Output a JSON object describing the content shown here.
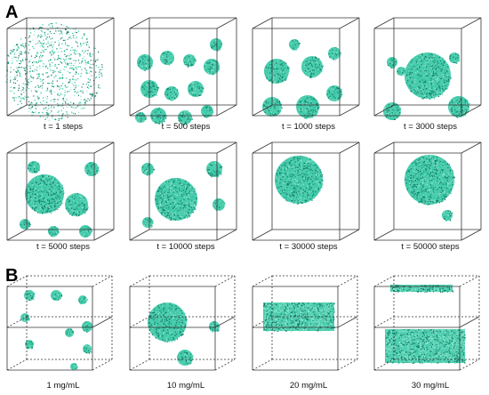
{
  "panels": {
    "a": {
      "letter": "A",
      "rows": [
        [
          {
            "caption": "t = 1 steps"
          },
          {
            "caption": "t = 500 steps"
          },
          {
            "caption": "t = 1000 steps"
          },
          {
            "caption": "t = 3000 steps"
          }
        ],
        [
          {
            "caption": "t = 5000 steps"
          },
          {
            "caption": "t = 10000 steps"
          },
          {
            "caption": "t = 30000 steps"
          },
          {
            "caption": "t = 50000 steps"
          }
        ]
      ]
    },
    "b": {
      "letter": "B",
      "items": [
        {
          "caption": "1 mg/mL"
        },
        {
          "caption": "10 mg/mL"
        },
        {
          "caption": "20 mg/mL"
        },
        {
          "caption": "30 mg/mL"
        }
      ]
    }
  },
  "colors": {
    "particle": "#2ec4a0",
    "particle_dark": "#0f7a66",
    "particle_light": "#8ee6cf",
    "edge": "#333333",
    "text": "#111111"
  }
}
